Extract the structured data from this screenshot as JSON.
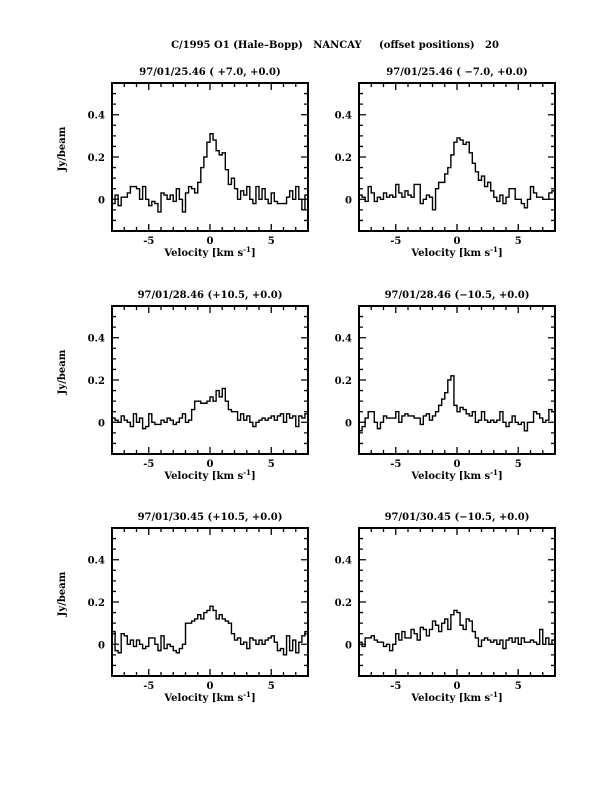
{
  "chart_data": {
    "type": "line",
    "title": "C/1995 O1 (Hale–Bopp)   NANCAY     (offset positions)   20",
    "xlabel": "Velocity [km s",
    "xlabel_sup": "-1",
    "xlabel_close": "]",
    "ylabel": "Jy/beam",
    "xlim": [
      -8,
      8
    ],
    "ylim": [
      -0.15,
      0.55
    ],
    "xticks": [
      "-5",
      "0",
      "5"
    ],
    "xtick_values": [
      -5,
      0,
      5
    ],
    "yticks": [
      "0",
      "0.2",
      "0.4"
    ],
    "ytick_values": [
      0,
      0.2,
      0.4
    ],
    "velocity_start": -8,
    "velocity_step": 0.25,
    "panels": [
      {
        "title": "97/01/25.46  ( +7.0, +0.0)",
        "values": [
          -0.02,
          0.02,
          -0.03,
          0.01,
          0.01,
          0.03,
          0.06,
          0.06,
          0.05,
          0.0,
          0.06,
          0.0,
          -0.03,
          -0.01,
          -0.02,
          -0.06,
          0.03,
          0.02,
          0.0,
          0.02,
          -0.01,
          0.05,
          0.0,
          -0.06,
          0.03,
          0.06,
          0.05,
          0.03,
          0.08,
          0.15,
          0.2,
          0.27,
          0.31,
          0.28,
          0.23,
          0.21,
          0.22,
          0.14,
          0.07,
          0.1,
          0.05,
          0.0,
          0.04,
          0.02,
          0.06,
          0.0,
          -0.02,
          0.06,
          0.0,
          0.05,
          0.0,
          -0.02,
          0.03,
          -0.01,
          -0.02,
          -0.02,
          -0.02,
          0.01,
          0.04,
          0.0,
          0.06,
          0.0,
          -0.05,
          0.02
        ]
      },
      {
        "title": "97/01/25.46  ( −7.0, +0.0)",
        "values": [
          0.02,
          0.01,
          -0.01,
          0.06,
          0.03,
          -0.01,
          0.01,
          0.0,
          0.03,
          0.01,
          0.02,
          0.01,
          0.07,
          0.03,
          0.01,
          0.04,
          0.02,
          0.01,
          0.07,
          0.07,
          -0.02,
          0.0,
          0.02,
          0.01,
          -0.05,
          0.05,
          0.08,
          0.08,
          0.12,
          0.15,
          0.21,
          0.27,
          0.29,
          0.28,
          0.26,
          0.27,
          0.22,
          0.17,
          0.13,
          0.09,
          0.11,
          0.06,
          0.08,
          0.04,
          0.01,
          -0.01,
          0.02,
          -0.02,
          0.01,
          0.05,
          0.05,
          0.0,
          0.0,
          -0.02,
          -0.04,
          0.0,
          0.06,
          0.03,
          0.01,
          0.01,
          0.0,
          0.0,
          0.03,
          0.04
        ]
      },
      {
        "title": "97/01/28.46  (+10.5, +0.0)",
        "values": [
          0.02,
          0.01,
          0.0,
          0.03,
          0.01,
          0.0,
          -0.02,
          0.04,
          0.0,
          0.02,
          -0.03,
          -0.02,
          0.04,
          0.0,
          -0.01,
          -0.01,
          0.01,
          0.0,
          0.02,
          0.01,
          -0.01,
          0.0,
          0.02,
          0.04,
          0.0,
          0.01,
          0.06,
          0.1,
          0.1,
          0.09,
          0.09,
          0.1,
          0.12,
          0.1,
          0.15,
          0.12,
          0.16,
          0.1,
          0.06,
          0.05,
          0.05,
          0.01,
          0.04,
          0.01,
          0.03,
          0.0,
          -0.02,
          0.0,
          0.01,
          0.02,
          0.01,
          0.02,
          0.03,
          0.01,
          0.03,
          0.04,
          0.0,
          0.04,
          0.02,
          0.03,
          -0.02,
          0.03,
          0.02,
          0.04
        ]
      },
      {
        "title": "97/01/28.46  (−10.5, +0.0)",
        "values": [
          -0.04,
          -0.02,
          0.02,
          0.05,
          0.05,
          0.0,
          -0.03,
          0.0,
          0.03,
          0.02,
          0.02,
          0.02,
          0.05,
          0.0,
          0.03,
          0.04,
          0.03,
          0.03,
          0.02,
          0.02,
          -0.01,
          0.03,
          0.04,
          0.01,
          0.03,
          0.05,
          0.08,
          0.11,
          0.14,
          0.2,
          0.22,
          0.08,
          0.05,
          0.07,
          0.06,
          0.04,
          0.03,
          0.05,
          0.0,
          0.01,
          0.05,
          0.01,
          0.0,
          0.01,
          0.0,
          0.01,
          0.05,
          0.0,
          -0.02,
          0.0,
          0.03,
          0.0,
          -0.01,
          0.0,
          -0.04,
          0.0,
          0.0,
          0.05,
          0.04,
          0.02,
          0.0,
          0.01,
          0.06,
          0.05
        ]
      },
      {
        "title": "97/01/30.45  (+10.5, +0.0)",
        "values": [
          0.06,
          -0.03,
          -0.04,
          0.05,
          0.04,
          0.0,
          0.02,
          -0.01,
          0.02,
          0.0,
          -0.02,
          -0.01,
          0.03,
          0.03,
          0.0,
          -0.03,
          0.04,
          -0.02,
          0.0,
          -0.01,
          -0.03,
          -0.04,
          -0.02,
          0.0,
          0.1,
          0.1,
          0.11,
          0.12,
          0.14,
          0.12,
          0.15,
          0.16,
          0.18,
          0.16,
          0.12,
          0.14,
          0.12,
          0.11,
          0.1,
          0.05,
          0.02,
          0.03,
          0.0,
          0.01,
          -0.02,
          0.03,
          0.02,
          0.0,
          0.02,
          0.0,
          0.02,
          0.03,
          0.04,
          0.01,
          -0.03,
          -0.02,
          -0.05,
          0.04,
          -0.03,
          0.02,
          -0.04,
          0.01,
          0.04,
          0.06
        ]
      },
      {
        "title": "97/01/30.45  (−10.5, +0.0)",
        "values": [
          0.01,
          -0.01,
          0.03,
          0.03,
          0.04,
          0.02,
          0.01,
          0.01,
          -0.01,
          0.0,
          -0.03,
          0.0,
          0.05,
          0.02,
          0.06,
          0.03,
          0.03,
          0.07,
          0.05,
          0.02,
          0.08,
          0.07,
          0.04,
          0.07,
          0.11,
          0.09,
          0.06,
          0.1,
          0.12,
          0.07,
          0.14,
          0.16,
          0.15,
          0.09,
          0.07,
          0.12,
          0.11,
          0.06,
          0.03,
          -0.01,
          0.02,
          0.03,
          0.02,
          0.01,
          0.02,
          0.0,
          0.02,
          -0.02,
          0.02,
          0.03,
          0.01,
          0.03,
          0.0,
          0.03,
          0.01,
          0.01,
          0.02,
          0.01,
          0.0,
          0.07,
          0.0,
          0.03,
          0.0,
          0.02
        ]
      }
    ]
  }
}
